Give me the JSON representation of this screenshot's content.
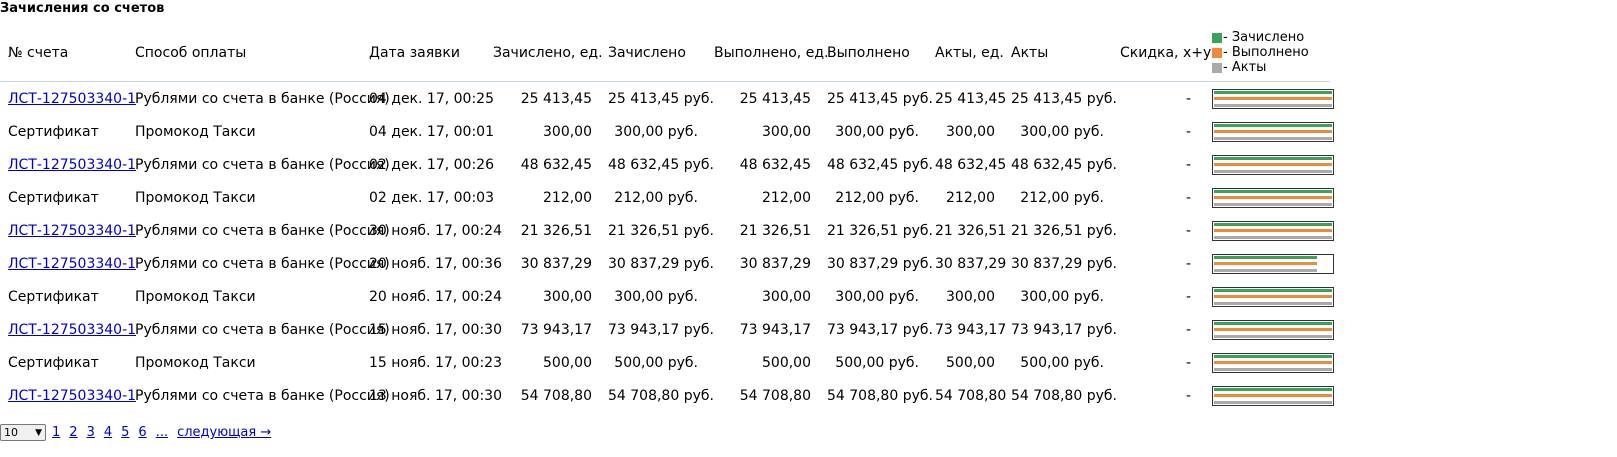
{
  "page": {
    "title": "Зачисления со счетов"
  },
  "table": {
    "headers": {
      "account": "№ счета",
      "payment_method": "Способ оплаты",
      "request_date": "Дата заявки",
      "credited_units": "Зачислено, ед.",
      "credited": "Зачислено",
      "done_units": "Выполнено, ед.",
      "done": "Выполнено",
      "acts_units": "Акты, ед.",
      "acts": "Акты",
      "discount": "Скидка, x+y"
    },
    "legend": {
      "credited": "- Зачислено",
      "done": "- Выполнено",
      "acts": "- Акты",
      "colors": {
        "credited": "#3aa35a",
        "done": "#ee8a3a",
        "acts": "#aaaaaa"
      }
    },
    "rows": [
      {
        "account": "ЛСТ-127503340-1",
        "is_link": true,
        "method": "Рублями со счета в банке (Россия)",
        "date": "04 дек. 17, 00:25",
        "credited_units": "25 413,45",
        "credited": "25 413,45 руб.",
        "done_units": "25 413,45",
        "done": "25 413,45 руб.",
        "acts_units": "25 413,45",
        "acts": "25 413,45 руб.",
        "discount": "-",
        "bars": {
          "credited": 1.0,
          "done": 1.0,
          "acts": 1.0
        }
      },
      {
        "account": "Сертификат",
        "is_link": false,
        "method": "Промокод Такси",
        "date": "04 дек. 17, 00:01",
        "credited_units": "300,00",
        "credited": "300,00 руб.",
        "done_units": "300,00",
        "done": "300,00 руб.",
        "acts_units": "300,00",
        "acts": "300,00 руб.",
        "discount": "-",
        "bars": {
          "credited": 1.0,
          "done": 1.0,
          "acts": 1.0
        }
      },
      {
        "account": "ЛСТ-127503340-1",
        "is_link": true,
        "method": "Рублями со счета в банке (Россия)",
        "date": "02 дек. 17, 00:26",
        "credited_units": "48 632,45",
        "credited": "48 632,45 руб.",
        "done_units": "48 632,45",
        "done": "48 632,45 руб.",
        "acts_units": "48 632,45",
        "acts": "48 632,45 руб.",
        "discount": "-",
        "bars": {
          "credited": 1.0,
          "done": 1.0,
          "acts": 1.0
        }
      },
      {
        "account": "Сертификат",
        "is_link": false,
        "method": "Промокод Такси",
        "date": "02 дек. 17, 00:03",
        "credited_units": "212,00",
        "credited": "212,00 руб.",
        "done_units": "212,00",
        "done": "212,00 руб.",
        "acts_units": "212,00",
        "acts": "212,00 руб.",
        "discount": "-",
        "bars": {
          "credited": 1.0,
          "done": 1.0,
          "acts": 1.0
        }
      },
      {
        "account": "ЛСТ-127503340-1",
        "is_link": true,
        "method": "Рублями со счета в банке (Россия)",
        "date": "30 нояб. 17, 00:24",
        "credited_units": "21 326,51",
        "credited": "21 326,51 руб.",
        "done_units": "21 326,51",
        "done": "21 326,51 руб.",
        "acts_units": "21 326,51",
        "acts": "21 326,51 руб.",
        "discount": "-",
        "bars": {
          "credited": 1.0,
          "done": 1.0,
          "acts": 1.0
        }
      },
      {
        "account": "ЛСТ-127503340-1",
        "is_link": true,
        "method": "Рублями со счета в банке (Россия)",
        "date": "20 нояб. 17, 00:36",
        "credited_units": "30 837,29",
        "credited": "30 837,29 руб.",
        "done_units": "30 837,29",
        "done": "30 837,29 руб.",
        "acts_units": "30 837,29",
        "acts": "30 837,29 руб.",
        "discount": "-",
        "bars": {
          "credited": 0.87,
          "done": 0.87,
          "acts": 0.87
        }
      },
      {
        "account": "Сертификат",
        "is_link": false,
        "method": "Промокод Такси",
        "date": "20 нояб. 17, 00:24",
        "credited_units": "300,00",
        "credited": "300,00 руб.",
        "done_units": "300,00",
        "done": "300,00 руб.",
        "acts_units": "300,00",
        "acts": "300,00 руб.",
        "discount": "-",
        "bars": {
          "credited": 1.0,
          "done": 1.0,
          "acts": 1.0
        }
      },
      {
        "account": "ЛСТ-127503340-1",
        "is_link": true,
        "method": "Рублями со счета в банке (Россия)",
        "date": "15 нояб. 17, 00:30",
        "credited_units": "73 943,17",
        "credited": "73 943,17 руб.",
        "done_units": "73 943,17",
        "done": "73 943,17 руб.",
        "acts_units": "73 943,17",
        "acts": "73 943,17 руб.",
        "discount": "-",
        "bars": {
          "credited": 1.0,
          "done": 1.0,
          "acts": 1.0
        }
      },
      {
        "account": "Сертификат",
        "is_link": false,
        "method": "Промокод Такси",
        "date": "15 нояб. 17, 00:23",
        "credited_units": "500,00",
        "credited": "500,00 руб.",
        "done_units": "500,00",
        "done": "500,00 руб.",
        "acts_units": "500,00",
        "acts": "500,00 руб.",
        "discount": "-",
        "bars": {
          "credited": 1.0,
          "done": 1.0,
          "acts": 1.0
        }
      },
      {
        "account": "ЛСТ-127503340-1",
        "is_link": true,
        "method": "Рублями со счета в банке (Россия)",
        "date": "13 нояб. 17, 00:30",
        "credited_units": "54 708,80",
        "credited": "54 708,80 руб.",
        "done_units": "54 708,80",
        "done": "54 708,80 руб.",
        "acts_units": "54 708,80",
        "acts": "54 708,80 руб.",
        "discount": "-",
        "bars": {
          "credited": 1.0,
          "done": 1.0,
          "acts": 1.0
        }
      }
    ]
  },
  "pager": {
    "page_size": "10",
    "dropdown_icon": "triangle-down-icon",
    "pages": [
      "1",
      "2",
      "3",
      "4",
      "5",
      "6",
      "..."
    ],
    "next": "следующая →"
  }
}
